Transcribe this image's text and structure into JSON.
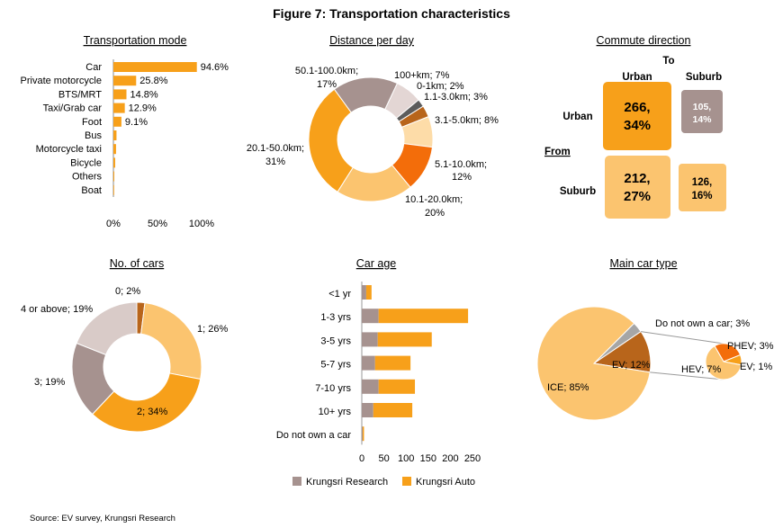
{
  "figure_title": "Figure 7: Transportation characteristics",
  "source": "Source: EV survey, Krungsri Research",
  "colors": {
    "orange": "#F7A01A",
    "light_orange": "#FBC46F",
    "peach": "#FDDCA8",
    "dark_orange": "#F36D0A",
    "brown": "#B8651B",
    "taupe": "#A6928F",
    "light_taupe": "#E3D6D4",
    "dark_gray": "#5C5C5C"
  },
  "chart_data": [
    {
      "id": "transport_mode",
      "type": "bar",
      "orientation": "horizontal",
      "title": "Transportation mode",
      "categories": [
        "Car",
        "Private motorcycle",
        "BTS/MRT",
        "Taxi/Grab car",
        "Foot",
        "Bus",
        "Motorcycle taxi",
        "Bicycle",
        "Others",
        "Boat"
      ],
      "values": [
        94.6,
        25.8,
        14.8,
        12.9,
        9.1,
        3.5,
        3.0,
        2.0,
        1.0,
        0.5
      ],
      "value_labels": [
        "94.6%",
        "25.8%",
        "14.8%",
        "12.9%",
        "9.1%",
        "",
        "",
        "",
        "",
        ""
      ],
      "xticks": [
        "0%",
        "50%",
        "100%"
      ],
      "xlim": [
        0,
        100
      ]
    },
    {
      "id": "distance",
      "type": "pie",
      "donut": true,
      "title": "Distance per day",
      "slices": [
        {
          "label": "100+km; 7%",
          "value": 7,
          "color": "#E3D6D4"
        },
        {
          "label": "0-1km; 2%",
          "value": 2,
          "color": "#5C5C5C"
        },
        {
          "label": "1.1-3.0km; 3%",
          "value": 3,
          "color": "#B8651B"
        },
        {
          "label": "3.1-5.0km; 8%",
          "value": 8,
          "color": "#FDDCA8"
        },
        {
          "label": "5.1-10.0km; 12%",
          "value": 12,
          "color": "#F36D0A"
        },
        {
          "label": "10.1-20.0km; 20%",
          "value": 20,
          "color": "#FBC46F"
        },
        {
          "label": "20.1-50.0km; 31%",
          "value": 31,
          "color": "#F7A01A"
        },
        {
          "label": "50.1-100.0km; 17%",
          "value": 17,
          "color": "#A6928F"
        }
      ]
    },
    {
      "id": "commute",
      "type": "table",
      "title": "Commute direction",
      "to_label": "To",
      "from_label": "From",
      "columns": [
        "Urban",
        "Suburb"
      ],
      "rows": [
        "Urban",
        "Suburb"
      ],
      "cells": [
        [
          {
            "count": 266,
            "pct": 34,
            "line1": "266,",
            "line2": "34%"
          },
          {
            "count": 105,
            "pct": 14,
            "line1": "105,",
            "line2": "14%"
          }
        ],
        [
          {
            "count": 212,
            "pct": 27,
            "line1": "212,",
            "line2": "27%"
          },
          {
            "count": 126,
            "pct": 16,
            "line1": "126,",
            "line2": "16%"
          }
        ]
      ]
    },
    {
      "id": "num_cars",
      "type": "pie",
      "donut": true,
      "title": "No. of cars",
      "slices": [
        {
          "label": "0; 2%",
          "value": 2,
          "color": "#B8651B"
        },
        {
          "label": "1; 26%",
          "value": 26,
          "color": "#FBC46F"
        },
        {
          "label": "2; 34%",
          "value": 34,
          "color": "#F7A01A"
        },
        {
          "label": "3; 19%",
          "value": 19,
          "color": "#A6928F"
        },
        {
          "label": "4 or above; 19%",
          "value": 19,
          "color": "#D9CBC8"
        }
      ]
    },
    {
      "id": "car_age",
      "type": "bar",
      "orientation": "horizontal",
      "stacked": true,
      "title": "Car age",
      "categories": [
        "<1 yr",
        "1-3 yrs",
        "3-5 yrs",
        "5-7 yrs",
        "7-10 yrs",
        "10+ yrs",
        "Do not own a car"
      ],
      "series": [
        {
          "name": "Krungsri Research",
          "color": "#A6928F",
          "values": [
            10,
            38,
            36,
            30,
            38,
            26,
            2
          ]
        },
        {
          "name": "Krungsri Auto",
          "color": "#F7A01A",
          "values": [
            12,
            202,
            122,
            80,
            82,
            88,
            3
          ]
        }
      ],
      "xticks": [
        "0",
        "50",
        "100",
        "150",
        "200",
        "250"
      ],
      "xlim": [
        0,
        250
      ]
    },
    {
      "id": "car_type",
      "type": "pie",
      "title": "Main car type",
      "slices": [
        {
          "label": "Do not own a car; 3%",
          "value": 3,
          "color": "#A6A6A6"
        },
        {
          "label": "EV; 12%",
          "value": 12,
          "color": "#B8651B"
        },
        {
          "label": "ICE; 85%",
          "value": 85,
          "color": "#FBC46F"
        }
      ],
      "sub_slices": [
        {
          "label": "PHEV; 3%",
          "value": 3,
          "color": "#F36D0A"
        },
        {
          "label": "EV; 1%",
          "value": 1,
          "color": "#F7A01A"
        },
        {
          "label": "HEV; 7%",
          "value": 7,
          "color": "#FBC46F"
        }
      ]
    }
  ],
  "legend": [
    {
      "name": "Krungsri Research",
      "color": "#A6928F"
    },
    {
      "name": "Krungsri Auto",
      "color": "#F7A01A"
    }
  ]
}
